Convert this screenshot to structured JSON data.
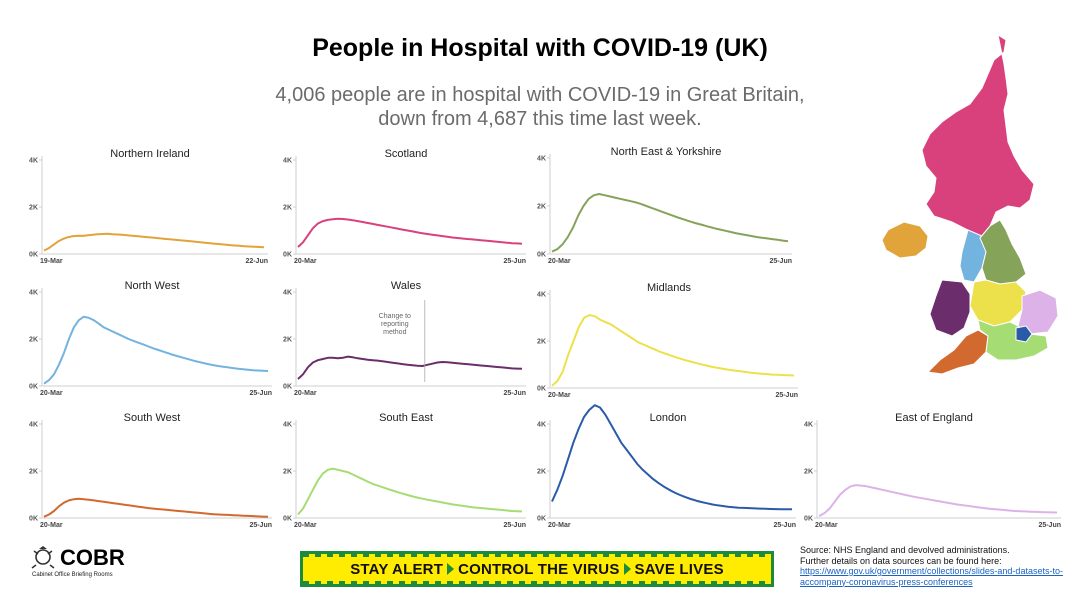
{
  "title": "People in Hospital with COVID-19 (UK)",
  "subtitle": {
    "line1": "4,006 people are in hospital with COVID-19 in Great Britain,",
    "line2": "down from 4,687 this time last week."
  },
  "chart_data": [
    {
      "type": "line",
      "title": "Northern Ireland",
      "color": "#e0a43a",
      "x_start": "19-Mar",
      "x_end": "22-Jun",
      "yticks": [
        "4K",
        "2K",
        "0K"
      ],
      "ylim": [
        0,
        4000
      ],
      "values": [
        150,
        250,
        400,
        550,
        650,
        720,
        760,
        780,
        770,
        800,
        820,
        840,
        850,
        860,
        840,
        830,
        820,
        800,
        780,
        760,
        740,
        720,
        700,
        680,
        660,
        640,
        620,
        600,
        580,
        560,
        540,
        520,
        500,
        480,
        460,
        440,
        420,
        400,
        380,
        360,
        350,
        330,
        320,
        310,
        300,
        290
      ]
    },
    {
      "type": "line",
      "title": "Scotland",
      "color": "#d9417d",
      "x_start": "20-Mar",
      "x_end": "25-Jun",
      "yticks": [
        "4K",
        "2K",
        "0K"
      ],
      "ylim": [
        0,
        4000
      ],
      "values": [
        300,
        500,
        800,
        1100,
        1300,
        1400,
        1450,
        1480,
        1500,
        1490,
        1470,
        1440,
        1400,
        1360,
        1320,
        1280,
        1240,
        1200,
        1160,
        1120,
        1080,
        1040,
        1000,
        960,
        920,
        880,
        850,
        820,
        790,
        760,
        730,
        700,
        680,
        660,
        640,
        620,
        600,
        580,
        560,
        540,
        520,
        500,
        480,
        460,
        450,
        440
      ]
    },
    {
      "type": "line",
      "title": "North East & Yorkshire",
      "color": "#86a35a",
      "x_start": "20-Mar",
      "x_end": "25-Jun",
      "yticks": [
        "4K",
        "2K",
        "0K"
      ],
      "ylim": [
        0,
        4000
      ],
      "values": [
        100,
        200,
        400,
        700,
        1100,
        1600,
        2000,
        2300,
        2450,
        2500,
        2450,
        2400,
        2350,
        2300,
        2250,
        2200,
        2150,
        2080,
        2000,
        1920,
        1840,
        1760,
        1680,
        1600,
        1520,
        1450,
        1380,
        1310,
        1250,
        1190,
        1130,
        1070,
        1020,
        970,
        920,
        870,
        830,
        790,
        750,
        710,
        680,
        650,
        620,
        590,
        560,
        530
      ]
    },
    {
      "type": "line",
      "title": "North West",
      "color": "#73b3e0",
      "x_start": "20-Mar",
      "x_end": "25-Jun",
      "yticks": [
        "4K",
        "2K",
        "0K"
      ],
      "ylim": [
        0,
        4000
      ],
      "values": [
        100,
        250,
        500,
        900,
        1400,
        2000,
        2500,
        2800,
        2950,
        2900,
        2800,
        2650,
        2500,
        2400,
        2300,
        2200,
        2100,
        2000,
        1920,
        1840,
        1760,
        1680,
        1600,
        1530,
        1460,
        1390,
        1320,
        1260,
        1200,
        1140,
        1080,
        1030,
        980,
        930,
        890,
        850,
        820,
        790,
        760,
        730,
        710,
        690,
        670,
        660,
        650,
        640
      ]
    },
    {
      "type": "line",
      "title": "Wales",
      "color": "#6b2d6b",
      "x_start": "20-Mar",
      "x_end": "25-Jun",
      "yticks": [
        "4K",
        "2K",
        "0K"
      ],
      "ylim": [
        0,
        4000
      ],
      "annotation": "Change to reporting method",
      "values": [
        300,
        500,
        800,
        1000,
        1100,
        1150,
        1200,
        1200,
        1180,
        1200,
        1250,
        1220,
        1180,
        1150,
        1120,
        1100,
        1080,
        1050,
        1020,
        990,
        960,
        930,
        900,
        880,
        860,
        850,
        900,
        950,
        1000,
        1020,
        1010,
        990,
        970,
        950,
        930,
        910,
        890,
        870,
        850,
        830,
        810,
        790,
        770,
        750,
        740,
        730
      ]
    },
    {
      "type": "line",
      "title": "Midlands",
      "color": "#ece14b",
      "x_start": "20-Mar",
      "x_end": "25-Jun",
      "yticks": [
        "4K",
        "2K",
        "0K"
      ],
      "ylim": [
        0,
        4000
      ],
      "values": [
        100,
        300,
        700,
        1400,
        2000,
        2600,
        3000,
        3100,
        3050,
        2900,
        2800,
        2700,
        2550,
        2400,
        2250,
        2100,
        1950,
        1850,
        1750,
        1650,
        1550,
        1470,
        1390,
        1310,
        1240,
        1170,
        1110,
        1050,
        990,
        940,
        890,
        850,
        810,
        770,
        740,
        710,
        680,
        650,
        630,
        610,
        590,
        570,
        560,
        550,
        540,
        530
      ]
    },
    {
      "type": "line",
      "title": "South West",
      "color": "#d2692e",
      "x_start": "20-Mar",
      "x_end": "25-Jun",
      "yticks": [
        "4K",
        "2K",
        "0K"
      ],
      "ylim": [
        0,
        4000
      ],
      "values": [
        50,
        150,
        300,
        500,
        650,
        750,
        800,
        820,
        800,
        780,
        750,
        720,
        690,
        660,
        630,
        600,
        570,
        540,
        510,
        480,
        450,
        420,
        400,
        380,
        360,
        340,
        320,
        300,
        280,
        260,
        240,
        220,
        200,
        180,
        160,
        150,
        140,
        130,
        120,
        110,
        100,
        90,
        80,
        70,
        60,
        50
      ]
    },
    {
      "type": "line",
      "title": "South East",
      "color": "#a6dc74",
      "x_start": "20-Mar",
      "x_end": "25-Jun",
      "yticks": [
        "4K",
        "2K",
        "0K"
      ],
      "ylim": [
        0,
        4000
      ],
      "values": [
        150,
        400,
        800,
        1200,
        1600,
        1900,
        2050,
        2100,
        2050,
        2000,
        1950,
        1850,
        1750,
        1650,
        1550,
        1450,
        1380,
        1310,
        1240,
        1170,
        1100,
        1040,
        980,
        920,
        870,
        820,
        780,
        740,
        700,
        660,
        620,
        580,
        550,
        520,
        490,
        460,
        440,
        420,
        400,
        380,
        360,
        340,
        320,
        300,
        290,
        280
      ]
    },
    {
      "type": "line",
      "title": "London",
      "color": "#2a5ba8",
      "x_start": "20-Mar",
      "x_end": "25-Jun",
      "yticks": [
        "4K",
        "2K",
        "0K"
      ],
      "ylim": [
        0,
        4000
      ],
      "values": [
        700,
        1200,
        1800,
        2500,
        3200,
        3800,
        4300,
        4600,
        4800,
        4700,
        4400,
        4000,
        3600,
        3200,
        2900,
        2600,
        2300,
        2050,
        1850,
        1650,
        1480,
        1330,
        1200,
        1080,
        980,
        890,
        810,
        740,
        680,
        630,
        580,
        540,
        510,
        480,
        460,
        440,
        430,
        420,
        410,
        400,
        390,
        385,
        380,
        375,
        370,
        370
      ]
    },
    {
      "type": "line",
      "title": "East of England",
      "color": "#ddb2e8",
      "x_start": "20-Mar",
      "x_end": "25-Jun",
      "yticks": [
        "4K",
        "2K",
        "0K"
      ],
      "ylim": [
        0,
        4000
      ],
      "values": [
        80,
        200,
        400,
        700,
        1000,
        1200,
        1350,
        1400,
        1380,
        1350,
        1300,
        1250,
        1200,
        1150,
        1100,
        1050,
        1000,
        950,
        900,
        860,
        820,
        780,
        740,
        700,
        660,
        620,
        580,
        550,
        520,
        490,
        460,
        430,
        400,
        380,
        360,
        340,
        320,
        300,
        290,
        280,
        270,
        260,
        250,
        245,
        240,
        235
      ]
    }
  ],
  "map": {
    "colors": {
      "scotland": "#d9417d",
      "northern_ireland": "#e0a43a",
      "north_west": "#73b3e0",
      "north_east": "#86a35a",
      "midlands": "#ece14b",
      "east": "#ddb2e8",
      "wales": "#6b2d6b",
      "south_west": "#d2692e",
      "south_east": "#a6dc74",
      "london": "#2a5ba8"
    }
  },
  "footer": {
    "cobr_name": "COBR",
    "cobr_sub": "Cabinet Office Briefing Rooms",
    "banner": {
      "part1": "STAY ALERT",
      "part2": "CONTROL THE VIRUS",
      "part3": "SAVE LIVES"
    },
    "source_line1": "Source: NHS England and devolved administrations.",
    "source_line2": "Further details on data sources can be found here:",
    "source_link": "https://www.gov.uk/government/collections/slides-and-datasets-to-accompany-coronavirus-press-conferences"
  }
}
